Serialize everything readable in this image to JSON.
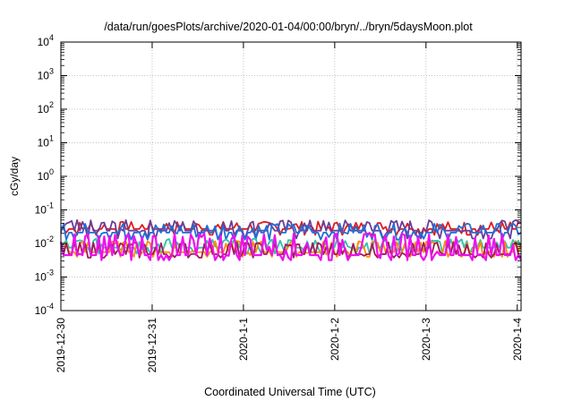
{
  "chart_data": {
    "type": "line",
    "title": "/data/run/goesPlots/archive/2020-01-04/00:00/bryn/../bryn/5daysMoon.plot",
    "xlabel": "Coordinated Universal Time (UTC)",
    "ylabel": "cGy/day",
    "yscale": "log",
    "ylim": [
      0.0001,
      10000
    ],
    "xlim": [
      "2019-12-30",
      "2020-01-04T01:00"
    ],
    "grid": true,
    "x_ticks": [
      {
        "value": "2019-12-30",
        "label": "2019-12-30"
      },
      {
        "value": "2019-12-31",
        "label": "2019-12-31"
      },
      {
        "value": "2020-01-01",
        "label": "2020-1-1"
      },
      {
        "value": "2020-01-02",
        "label": "2020-1-2"
      },
      {
        "value": "2020-01-03",
        "label": "2020-1-3"
      },
      {
        "value": "2020-01-04",
        "label": "2020-1-4"
      }
    ],
    "y_ticks": [
      {
        "value": 0.0001,
        "base": "10",
        "exp": "-4"
      },
      {
        "value": 0.001,
        "base": "10",
        "exp": "-3"
      },
      {
        "value": 0.01,
        "base": "10",
        "exp": "-2"
      },
      {
        "value": 0.1,
        "base": "10",
        "exp": "-1"
      },
      {
        "value": 1,
        "base": "10",
        "exp": "0"
      },
      {
        "value": 10,
        "base": "10",
        "exp": "1"
      },
      {
        "value": 100,
        "base": "10",
        "exp": "2"
      },
      {
        "value": 1000,
        "base": "10",
        "exp": "3"
      },
      {
        "value": 10000,
        "base": "10",
        "exp": "4"
      }
    ],
    "series": [
      {
        "color": "#e41a1c",
        "baseline": 0.027,
        "spike": 0.045,
        "dip": 0.018
      },
      {
        "color": "#6a3d9a",
        "baseline": 0.024,
        "spike": 0.05,
        "dip": 0.014
      },
      {
        "color": "#1f6fd6",
        "baseline": 0.021,
        "spike": 0.04,
        "dip": 0.013
      },
      {
        "color": "#2cc4a8",
        "baseline": 0.0075,
        "spike": 0.014,
        "dip": 0.005
      },
      {
        "color": "#ff8c00",
        "baseline": 0.0055,
        "spike": 0.012,
        "dip": 0.004
      },
      {
        "color": "#9e1c5a",
        "baseline": 0.0048,
        "spike": 0.011,
        "dip": 0.0038
      },
      {
        "color": "#ee11ee",
        "baseline": 0.0045,
        "spike": 0.02,
        "dip": 0.0032
      }
    ]
  }
}
